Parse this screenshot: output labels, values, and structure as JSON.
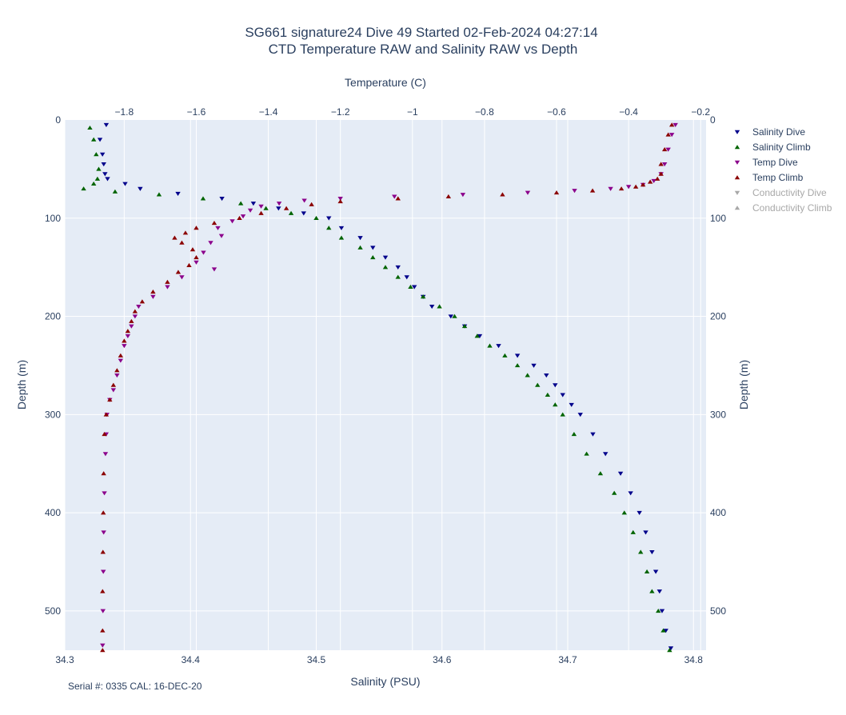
{
  "title_line1": "SG661 signature24 Dive 49 Started 02-Feb-2024 04:27:14",
  "title_line2": "CTD Temperature RAW and Salinity RAW vs Depth",
  "serial_note": "Serial #: 0335  CAL: 16-DEC-20",
  "colors": {
    "salinity_dive": "#00008b",
    "salinity_climb": "#006400",
    "temp_dive": "#8b008b",
    "temp_climb": "#8b0000",
    "legend_off": "#a8a8a8",
    "plot_bg": "#e5ecf6",
    "grid": "#ffffff"
  },
  "chart_data": {
    "type": "scatter",
    "x_bottom": {
      "label": "Salinity (PSU)",
      "range": [
        34.3,
        34.81
      ],
      "ticks": [
        34.3,
        34.4,
        34.5,
        34.6,
        34.7,
        34.8
      ],
      "tick_labels": [
        "34.3",
        "34.4",
        "34.5",
        "34.6",
        "34.7",
        "34.8"
      ]
    },
    "x_top": {
      "label": "Temperature (C)",
      "range": [
        -1.965,
        -0.185
      ],
      "ticks": [
        -1.8,
        -1.6,
        -1.4,
        -1.2,
        -1.0,
        -0.8,
        -0.6,
        -0.4,
        -0.2
      ],
      "tick_labels": [
        "−1.8",
        "−1.6",
        "−1.4",
        "−1.2",
        "−1",
        "−0.8",
        "−0.6",
        "−0.4",
        "−0.2"
      ]
    },
    "y": {
      "label": "Depth (m)",
      "range": [
        540,
        0
      ],
      "reversed": true,
      "ticks": [
        0,
        100,
        200,
        300,
        400,
        500
      ],
      "tick_labels": [
        "0",
        "100",
        "200",
        "300",
        "400",
        "500"
      ]
    },
    "grid": true,
    "legend_position": "top-right",
    "series": [
      {
        "name": "Salinity Dive",
        "axis": "salinity",
        "marker": "triangle-down",
        "depth": [
          5,
          20,
          35,
          45,
          55,
          60,
          65,
          70,
          75,
          80,
          85,
          90,
          95,
          100,
          110,
          120,
          130,
          140,
          150,
          160,
          170,
          180,
          190,
          200,
          210,
          220,
          230,
          240,
          250,
          260,
          270,
          280,
          290,
          300,
          320,
          340,
          360,
          380,
          400,
          420,
          440,
          460,
          480,
          500,
          520,
          538
        ],
        "values": [
          34.333,
          34.328,
          34.33,
          34.331,
          34.332,
          34.334,
          34.348,
          34.36,
          34.39,
          34.425,
          34.45,
          34.47,
          34.49,
          34.51,
          34.52,
          34.535,
          34.545,
          34.555,
          34.565,
          34.572,
          34.578,
          34.585,
          34.592,
          34.607,
          34.618,
          34.63,
          34.645,
          34.66,
          34.673,
          34.683,
          34.69,
          34.696,
          34.703,
          34.71,
          34.72,
          34.73,
          34.742,
          34.75,
          34.757,
          34.762,
          34.767,
          34.77,
          34.773,
          34.775,
          34.778,
          34.782
        ]
      },
      {
        "name": "Salinity Climb",
        "axis": "salinity",
        "marker": "triangle-up",
        "depth": [
          8,
          20,
          35,
          50,
          60,
          65,
          70,
          73,
          76,
          80,
          85,
          90,
          95,
          100,
          110,
          120,
          130,
          140,
          150,
          160,
          170,
          180,
          190,
          200,
          210,
          220,
          230,
          240,
          250,
          260,
          270,
          280,
          290,
          300,
          320,
          340,
          360,
          380,
          400,
          420,
          440,
          460,
          480,
          500,
          520,
          540
        ],
        "values": [
          34.32,
          34.323,
          34.325,
          34.327,
          34.326,
          34.323,
          34.315,
          34.34,
          34.375,
          34.41,
          34.44,
          34.46,
          34.48,
          34.5,
          34.51,
          34.52,
          34.535,
          34.545,
          34.555,
          34.565,
          34.575,
          34.585,
          34.598,
          34.61,
          34.618,
          34.628,
          34.638,
          34.65,
          34.66,
          34.668,
          34.676,
          34.684,
          34.69,
          34.696,
          34.705,
          34.715,
          34.726,
          34.737,
          34.745,
          34.752,
          34.758,
          34.763,
          34.767,
          34.772,
          34.776,
          34.781
        ]
      },
      {
        "name": "Temp Dive",
        "axis": "temperature",
        "marker": "triangle-down",
        "depth": [
          5,
          15,
          30,
          45,
          55,
          62,
          66,
          68,
          70,
          72,
          74,
          76,
          78,
          80,
          82,
          85,
          88,
          92,
          98,
          103,
          110,
          118,
          125,
          135,
          145,
          152,
          160,
          170,
          180,
          190,
          200,
          210,
          220,
          230,
          245,
          260,
          275,
          285,
          300,
          320,
          340,
          380,
          420,
          460,
          500,
          535
        ],
        "values": [
          -0.27,
          -0.28,
          -0.29,
          -0.3,
          -0.31,
          -0.33,
          -0.36,
          -0.4,
          -0.45,
          -0.55,
          -0.68,
          -0.86,
          -1.05,
          -1.2,
          -1.3,
          -1.37,
          -1.42,
          -1.45,
          -1.47,
          -1.5,
          -1.54,
          -1.53,
          -1.56,
          -1.58,
          -1.6,
          -1.55,
          -1.64,
          -1.68,
          -1.72,
          -1.76,
          -1.77,
          -1.78,
          -1.79,
          -1.8,
          -1.81,
          -1.82,
          -1.83,
          -1.84,
          -1.848,
          -1.85,
          -1.852,
          -1.855,
          -1.857,
          -1.858,
          -1.859,
          -1.86
        ]
      },
      {
        "name": "Temp Climb",
        "axis": "temperature",
        "marker": "triangle-up",
        "depth": [
          5,
          15,
          30,
          45,
          55,
          60,
          63,
          66,
          68,
          70,
          72,
          74,
          76,
          78,
          80,
          83,
          86,
          90,
          95,
          100,
          105,
          110,
          115,
          120,
          125,
          132,
          140,
          148,
          155,
          165,
          175,
          185,
          195,
          205,
          215,
          225,
          240,
          255,
          270,
          285,
          300,
          320,
          360,
          400,
          440,
          480,
          520,
          540
        ],
        "values": [
          -0.28,
          -0.29,
          -0.3,
          -0.31,
          -0.31,
          -0.32,
          -0.34,
          -0.36,
          -0.38,
          -0.42,
          -0.5,
          -0.6,
          -0.75,
          -0.9,
          -1.04,
          -1.2,
          -1.28,
          -1.35,
          -1.42,
          -1.48,
          -1.55,
          -1.6,
          -1.63,
          -1.66,
          -1.64,
          -1.61,
          -1.6,
          -1.62,
          -1.65,
          -1.68,
          -1.72,
          -1.75,
          -1.77,
          -1.78,
          -1.79,
          -1.8,
          -1.81,
          -1.82,
          -1.83,
          -1.84,
          -1.85,
          -1.855,
          -1.857,
          -1.858,
          -1.859,
          -1.86,
          -1.86,
          -1.86
        ]
      },
      {
        "name": "Conductivity Dive",
        "axis": "none",
        "marker": "triangle-down",
        "visible": false,
        "depth": [],
        "values": []
      },
      {
        "name": "Conductivity Climb",
        "axis": "none",
        "marker": "triangle-up",
        "visible": false,
        "depth": [],
        "values": []
      }
    ]
  }
}
